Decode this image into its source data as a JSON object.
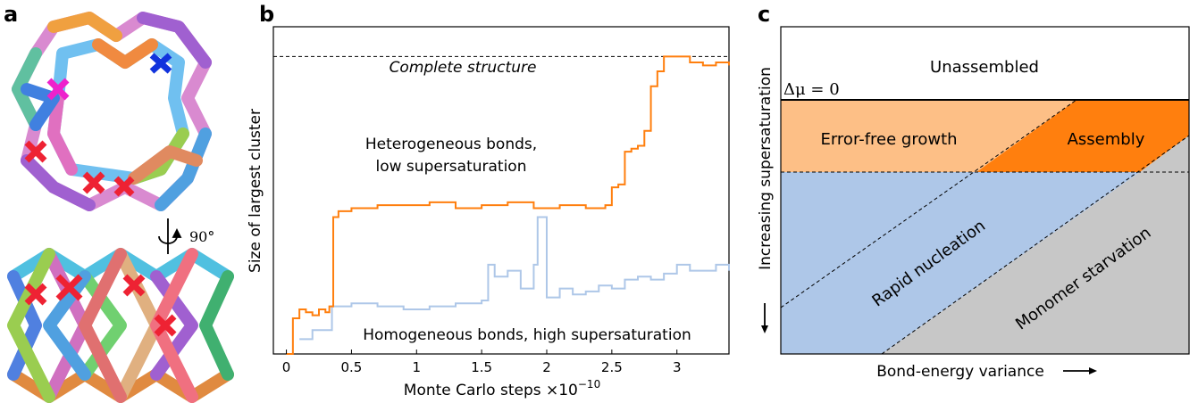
{
  "panels": {
    "a": "a",
    "b": "b",
    "c": "c"
  },
  "panel_a": {
    "rotation_label": "90°"
  },
  "chart_data": [
    {
      "type": "line",
      "panel": "b",
      "xlabel": "Monte Carlo steps ×10",
      "xlabel_exponent": "−10",
      "ylabel": "Size of largest cluster",
      "xlim": [
        -0.1,
        3.4
      ],
      "ylim": [
        0,
        1.1
      ],
      "xticks": [
        0,
        0.5,
        1,
        1.5,
        2,
        2.5,
        3
      ],
      "xtick_labels": [
        "0",
        "0.5",
        "1",
        "1.5",
        "2",
        "2.5",
        "3"
      ],
      "reference_line": {
        "y": 1.0,
        "label": "Complete structure"
      },
      "annotations": [
        "Heterogeneous bonds,",
        "low supersaturation",
        "Homogeneous bonds, high supersaturation"
      ],
      "series": [
        {
          "color": "#ff7f0e",
          "x": [
            0,
            0.05,
            0.1,
            0.15,
            0.2,
            0.25,
            0.3,
            0.33,
            0.36,
            0.4,
            0.5,
            0.7,
            0.9,
            1.1,
            1.3,
            1.5,
            1.7,
            1.9,
            2.1,
            2.3,
            2.45,
            2.5,
            2.55,
            2.6,
            2.65,
            2.7,
            2.75,
            2.8,
            2.85,
            2.9,
            3.0,
            3.1,
            3.2,
            3.3,
            3.4
          ],
          "y": [
            0.0,
            0.12,
            0.15,
            0.14,
            0.13,
            0.15,
            0.14,
            0.16,
            0.46,
            0.48,
            0.49,
            0.5,
            0.5,
            0.51,
            0.49,
            0.5,
            0.51,
            0.49,
            0.5,
            0.49,
            0.5,
            0.56,
            0.57,
            0.68,
            0.69,
            0.7,
            0.75,
            0.9,
            0.95,
            1.0,
            1.0,
            0.98,
            0.97,
            0.98,
            0.97
          ]
        },
        {
          "color": "#aec7e8",
          "x": [
            0.1,
            0.2,
            0.35,
            0.5,
            0.7,
            0.9,
            1.1,
            1.3,
            1.5,
            1.55,
            1.6,
            1.7,
            1.8,
            1.9,
            1.93,
            2.0,
            2.1,
            2.2,
            2.3,
            2.4,
            2.5,
            2.6,
            2.7,
            2.8,
            2.9,
            3.0,
            3.1,
            3.2,
            3.3,
            3.4
          ],
          "y": [
            0.05,
            0.08,
            0.16,
            0.17,
            0.16,
            0.15,
            0.16,
            0.17,
            0.18,
            0.3,
            0.26,
            0.28,
            0.22,
            0.3,
            0.46,
            0.19,
            0.22,
            0.2,
            0.21,
            0.23,
            0.22,
            0.25,
            0.26,
            0.25,
            0.27,
            0.3,
            0.28,
            0.28,
            0.3,
            0.28
          ]
        }
      ]
    },
    {
      "type": "diagram",
      "panel": "c",
      "xlabel": "Bond-energy variance",
      "ylabel": "Increasing supersaturation",
      "threshold_label": "Δμ = 0",
      "regions": [
        {
          "label": "Unassembled",
          "color": "#ffffff"
        },
        {
          "label": "Error-free growth",
          "color": "#fdbf86"
        },
        {
          "label": "Assembly",
          "color": "#ff7f0e"
        },
        {
          "label": "Rapid nucleation",
          "color": "#aec7e8"
        },
        {
          "label": "Monomer starvation",
          "color": "#c7c7c7"
        }
      ]
    }
  ]
}
